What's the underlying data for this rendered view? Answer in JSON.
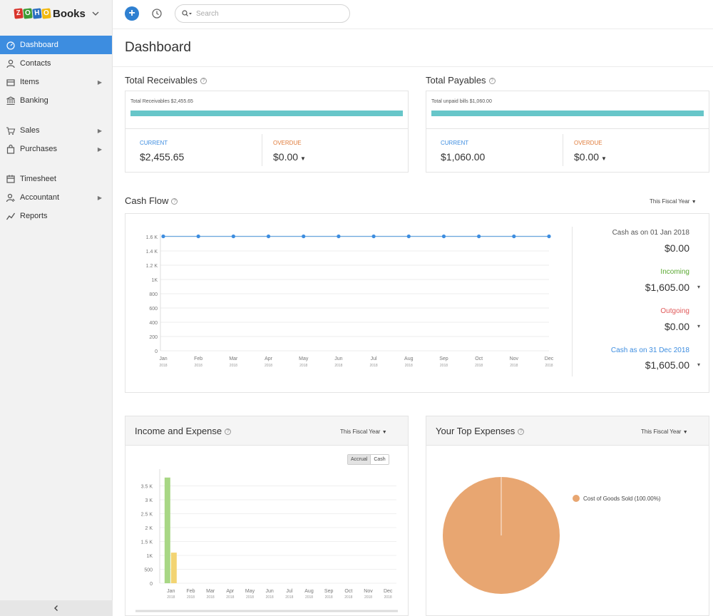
{
  "app": {
    "brand_name": "Books",
    "logo_letters": [
      "Z",
      "O",
      "H",
      "O"
    ],
    "logo_colors": [
      "#d9342b",
      "#3d9b35",
      "#2b6fc1",
      "#f2b90f"
    ]
  },
  "search": {
    "placeholder": "Search"
  },
  "sidebar": {
    "items": [
      {
        "label": "Dashboard",
        "icon": "dashboard-icon",
        "active": true,
        "arrow": false
      },
      {
        "label": "Contacts",
        "icon": "user-icon",
        "arrow": false
      },
      {
        "label": "Items",
        "icon": "box-icon",
        "arrow": true
      },
      {
        "label": "Banking",
        "icon": "bank-icon",
        "arrow": false
      },
      {
        "label": "Sales",
        "icon": "cart-icon",
        "arrow": true
      },
      {
        "label": "Purchases",
        "icon": "bag-icon",
        "arrow": true
      },
      {
        "label": "Timesheet",
        "icon": "calendar-icon",
        "arrow": false
      },
      {
        "label": "Accountant",
        "icon": "accountant-icon",
        "arrow": true
      },
      {
        "label": "Reports",
        "icon": "chart-line-icon",
        "arrow": false
      }
    ]
  },
  "page": {
    "title": "Dashboard"
  },
  "receivables": {
    "title": "Total Receivables",
    "bar_label": "Total Receivables $2,455.65",
    "current_label": "CURRENT",
    "current_value": "$2,455.65",
    "overdue_label": "OVERDUE",
    "overdue_value": "$0.00"
  },
  "payables": {
    "title": "Total Payables",
    "bar_label": "Total unpaid bills $1,060.00",
    "current_label": "CURRENT",
    "current_value": "$1,060.00",
    "overdue_label": "OVERDUE",
    "overdue_value": "$0.00"
  },
  "cash_flow": {
    "title": "Cash Flow",
    "period": "This Fiscal Year",
    "opening_label": "Cash as on 01 Jan 2018",
    "opening_value": "$0.00",
    "incoming_label": "Incoming",
    "incoming_value": "$1,605.00",
    "outgoing_label": "Outgoing",
    "outgoing_value": "$0.00",
    "closing_label": "Cash as on 31 Dec 2018",
    "closing_value": "$1,605.00"
  },
  "income_expense": {
    "title": "Income and Expense",
    "period": "This Fiscal Year",
    "toggle_accrual": "Accrual",
    "toggle_cash": "Cash"
  },
  "top_expenses": {
    "title": "Your Top Expenses",
    "period": "This Fiscal Year"
  },
  "colors": {
    "accent": "#3d8de0",
    "teal_bar": "#67c6c9",
    "income": "#a8d785",
    "expense": "#f2d472",
    "pie": "#e8a671",
    "incoming_text": "#5aa832",
    "outgoing_text": "#e05a5a"
  },
  "chart_data": [
    {
      "type": "line",
      "name": "cash-flow",
      "categories": [
        "Jan 2018",
        "Feb 2018",
        "Mar 2018",
        "Apr 2018",
        "May 2018",
        "Jun 2018",
        "Jul 2018",
        "Aug 2018",
        "Sep 2018",
        "Oct 2018",
        "Nov 2018",
        "Dec 2018"
      ],
      "x_month": [
        "Jan",
        "Feb",
        "Mar",
        "Apr",
        "May",
        "Jun",
        "Jul",
        "Aug",
        "Sep",
        "Oct",
        "Nov",
        "Dec"
      ],
      "x_year": "2018",
      "values": [
        1605,
        1605,
        1605,
        1605,
        1605,
        1605,
        1605,
        1605,
        1605,
        1605,
        1605,
        1605
      ],
      "yticks": [
        0,
        200,
        400,
        600,
        800,
        1000,
        1200,
        1400,
        1600
      ],
      "ytick_labels": [
        "0",
        "200",
        "400",
        "600",
        "800",
        "1K",
        "1.2 K",
        "1.4 K",
        "1.6 K"
      ],
      "ylim": [
        0,
        1600
      ],
      "grid": true
    },
    {
      "type": "bar",
      "name": "income-expense",
      "categories": [
        "Jan 2018",
        "Feb 2018",
        "Mar 2018",
        "Apr 2018",
        "May 2018",
        "Jun 2018",
        "Jul 2018",
        "Aug 2018",
        "Sep 2018",
        "Oct 2018",
        "Nov 2018",
        "Dec 2018"
      ],
      "x_month": [
        "Jan",
        "Feb",
        "Mar",
        "Apr",
        "May",
        "Jun",
        "Jul",
        "Aug",
        "Sep",
        "Oct",
        "Nov",
        "Dec"
      ],
      "x_year": "2018",
      "series": [
        {
          "values": [
            3800,
            0,
            0,
            0,
            0,
            0,
            0,
            0,
            0,
            0,
            0,
            0
          ]
        },
        {
          "values": [
            1100,
            0,
            0,
            0,
            0,
            0,
            0,
            0,
            0,
            0,
            0,
            0
          ]
        }
      ],
      "yticks": [
        0,
        500,
        1000,
        1500,
        2000,
        2500,
        3000,
        3500
      ],
      "ytick_labels": [
        "0",
        "500",
        "1K",
        "1.5 K",
        "2 K",
        "2.5 K",
        "3 K",
        "3.5 K"
      ],
      "ylim": [
        0,
        4000
      ],
      "grid": true
    },
    {
      "type": "pie",
      "name": "top-expenses",
      "labels": [
        "Cost of Goods Sold (100.00%)"
      ],
      "values": [
        100
      ],
      "legend": "right"
    }
  ]
}
